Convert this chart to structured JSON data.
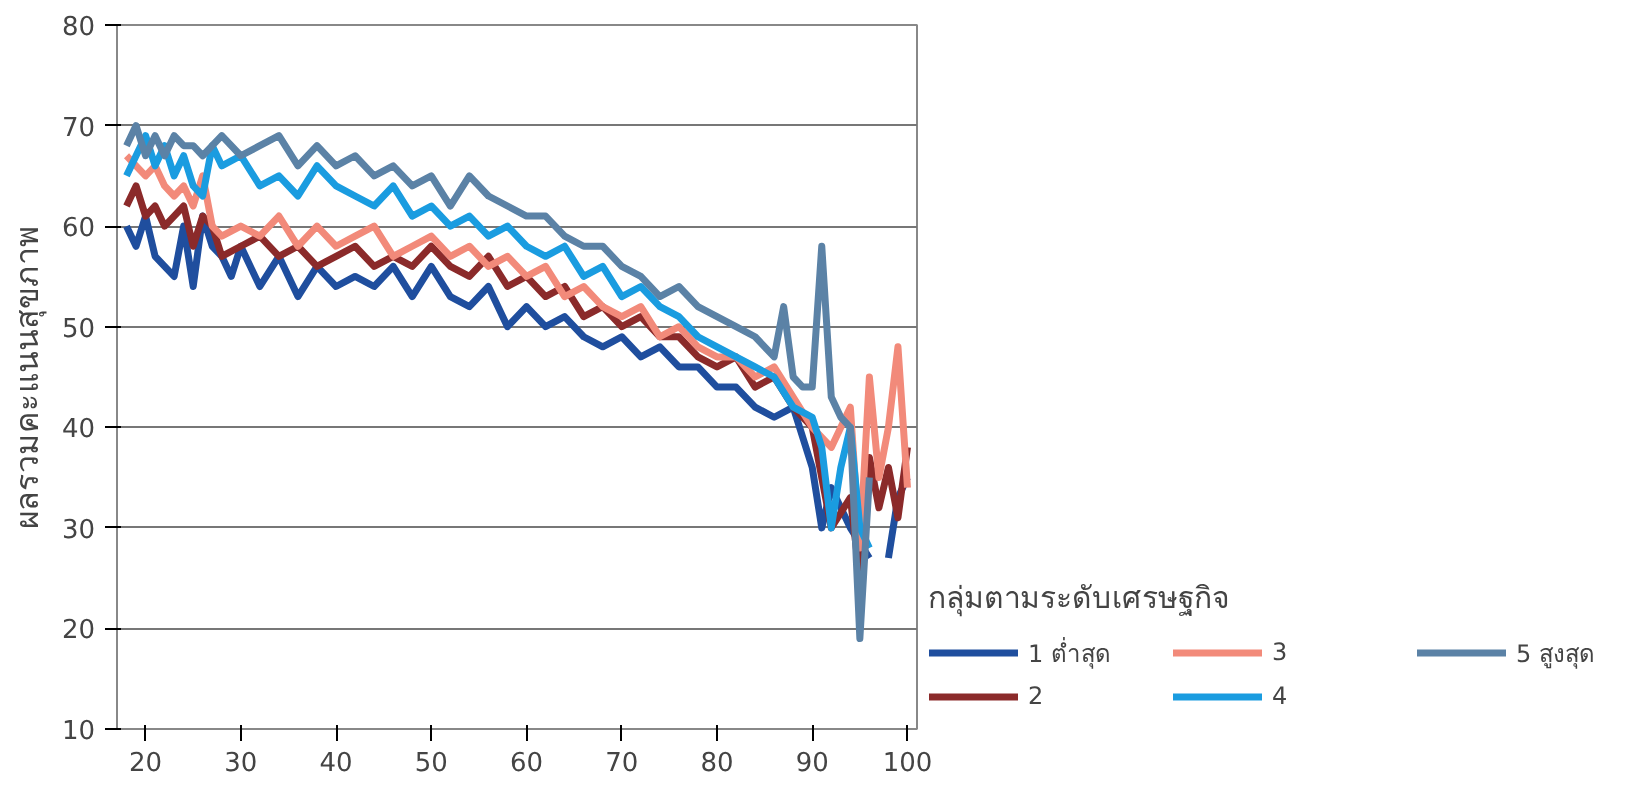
{
  "chart_data": {
    "type": "line",
    "ylabel": "ผลรวมคะแนนสุขภาพ",
    "legend_title": "กลุ่มตามระดับเศรษฐกิจ",
    "legend": "bottom right",
    "grid": "y",
    "line_style": "solid",
    "marker": "none",
    "xlim": [
      17,
      101
    ],
    "xticks": [
      20,
      30,
      40,
      50,
      60,
      70,
      80,
      90,
      100
    ],
    "ylim": [
      10,
      80
    ],
    "yticks": [
      10,
      20,
      30,
      40,
      50,
      60,
      70,
      80
    ],
    "series": [
      {
        "name": "1 ต่ำสุด",
        "color": "#1f4e9e",
        "x": [
          18,
          19,
          20,
          21,
          22,
          23,
          24,
          25,
          26,
          27,
          28,
          29,
          30,
          32,
          34,
          36,
          38,
          40,
          42,
          44,
          46,
          48,
          50,
          52,
          54,
          56,
          58,
          60,
          62,
          64,
          66,
          68,
          70,
          72,
          74,
          76,
          78,
          80,
          82,
          84,
          86,
          88,
          90,
          91,
          92,
          94,
          96,
          97,
          98,
          99,
          100
        ],
        "values": [
          60,
          58,
          61,
          57,
          56,
          55,
          60,
          54,
          61,
          58,
          57,
          55,
          58,
          54,
          57,
          53,
          56,
          54,
          55,
          54,
          56,
          53,
          56,
          53,
          52,
          54,
          50,
          52,
          50,
          51,
          49,
          48,
          49,
          47,
          48,
          46,
          46,
          44,
          44,
          42,
          41,
          42,
          36,
          30,
          34,
          30,
          27,
          null,
          27,
          33,
          35
        ]
      },
      {
        "name": "2",
        "color": "#8b2a2a",
        "x": [
          18,
          19,
          20,
          21,
          22,
          23,
          24,
          25,
          26,
          27,
          28,
          30,
          32,
          34,
          36,
          38,
          40,
          42,
          44,
          46,
          48,
          50,
          52,
          54,
          56,
          58,
          60,
          62,
          64,
          66,
          68,
          70,
          72,
          74,
          76,
          78,
          80,
          82,
          84,
          86,
          88,
          90,
          92,
          94,
          95,
          96,
          97,
          98,
          99,
          100
        ],
        "values": [
          62,
          64,
          61,
          62,
          60,
          61,
          62,
          58,
          61,
          60,
          57,
          58,
          59,
          57,
          58,
          56,
          57,
          58,
          56,
          57,
          56,
          58,
          56,
          55,
          57,
          54,
          55,
          53,
          54,
          51,
          52,
          50,
          51,
          49,
          49,
          47,
          46,
          47,
          44,
          45,
          42,
          40,
          30,
          33,
          25,
          37,
          32,
          36,
          31,
          38
        ]
      },
      {
        "name": "3",
        "color": "#f28a7a",
        "x": [
          18,
          19,
          20,
          21,
          22,
          23,
          24,
          25,
          26,
          27,
          28,
          30,
          32,
          34,
          36,
          38,
          40,
          42,
          44,
          46,
          48,
          50,
          52,
          54,
          56,
          58,
          60,
          62,
          64,
          66,
          68,
          70,
          72,
          74,
          76,
          78,
          80,
          82,
          84,
          86,
          88,
          90,
          92,
          94,
          95,
          96,
          97,
          98,
          99,
          100
        ],
        "values": [
          67,
          66,
          65,
          66,
          64,
          63,
          64,
          62,
          65,
          60,
          59,
          60,
          59,
          61,
          58,
          60,
          58,
          59,
          60,
          57,
          58,
          59,
          57,
          58,
          56,
          57,
          55,
          56,
          53,
          54,
          52,
          51,
          52,
          49,
          50,
          48,
          47,
          47,
          45,
          46,
          43,
          40,
          38,
          42,
          28,
          45,
          35,
          40,
          48,
          34
        ]
      },
      {
        "name": "4",
        "color": "#1a9ce0",
        "x": [
          18,
          19,
          20,
          21,
          22,
          23,
          24,
          25,
          26,
          27,
          28,
          30,
          32,
          34,
          36,
          38,
          40,
          42,
          44,
          46,
          48,
          50,
          52,
          54,
          56,
          58,
          60,
          62,
          64,
          66,
          68,
          70,
          72,
          74,
          76,
          78,
          80,
          82,
          84,
          86,
          88,
          90,
          91,
          92,
          93,
          94,
          95,
          96
        ],
        "values": [
          65,
          67,
          69,
          66,
          68,
          65,
          67,
          64,
          63,
          68,
          66,
          67,
          64,
          65,
          63,
          66,
          64,
          63,
          62,
          64,
          61,
          62,
          60,
          61,
          59,
          60,
          58,
          57,
          58,
          55,
          56,
          53,
          54,
          52,
          51,
          49,
          48,
          47,
          46,
          45,
          42,
          41,
          38,
          30,
          36,
          40,
          30,
          28
        ]
      },
      {
        "name": "5 สูงสุด",
        "color": "#5b82a6",
        "x": [
          18,
          19,
          20,
          21,
          22,
          23,
          24,
          25,
          26,
          27,
          28,
          30,
          32,
          34,
          36,
          38,
          40,
          42,
          44,
          46,
          48,
          50,
          52,
          54,
          56,
          58,
          60,
          62,
          64,
          66,
          68,
          70,
          72,
          74,
          76,
          78,
          80,
          82,
          84,
          86,
          87,
          88,
          89,
          90,
          91,
          92,
          93,
          94,
          95,
          96
        ],
        "values": [
          68,
          70,
          67,
          69,
          67,
          69,
          68,
          68,
          67,
          68,
          69,
          67,
          68,
          69,
          66,
          68,
          66,
          67,
          65,
          66,
          64,
          65,
          62,
          65,
          63,
          62,
          61,
          61,
          59,
          58,
          58,
          56,
          55,
          53,
          54,
          52,
          51,
          50,
          49,
          47,
          52,
          45,
          44,
          44,
          58,
          43,
          41,
          40,
          19,
          35
        ]
      }
    ]
  }
}
